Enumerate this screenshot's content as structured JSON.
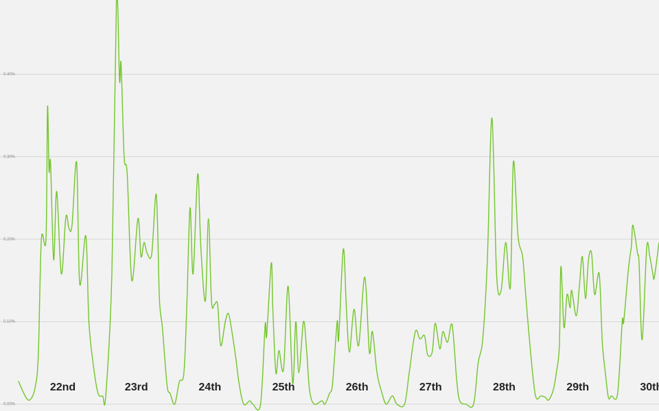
{
  "chart_data": {
    "type": "line",
    "color": "#72c52a",
    "grid": true,
    "day_labels": [
      "22nd",
      "23rd",
      "24th",
      "25th",
      "26th",
      "27th",
      "28th",
      "29th",
      "30th"
    ],
    "xlim": [
      -8.5,
      206.5
    ],
    "ylim": [
      0,
      0.49
    ],
    "yticks": [
      {
        "value": 0,
        "label": "0.00%"
      },
      {
        "value": 0.1,
        "label": "0.10%"
      },
      {
        "value": 0.2,
        "label": "0.20%"
      },
      {
        "value": 0.3,
        "label": "0.30%"
      },
      {
        "value": 0.4,
        "label": "0.40%"
      }
    ],
    "x": [
      -2.5,
      0,
      1.5,
      3,
      4,
      5,
      6.5,
      7,
      7.5,
      8,
      9,
      10,
      11.5,
      13,
      14,
      15,
      16.5,
      17.5,
      19.5,
      20.5,
      22,
      23.5,
      25,
      26,
      28,
      29.5,
      30.5,
      31,
      32,
      33,
      34.5,
      36.5,
      37.5,
      38.5,
      39.5,
      41,
      42.5,
      43.5,
      44.5,
      46,
      47,
      48.5,
      50,
      51.5,
      52.5,
      53.5,
      54.5,
      56,
      57,
      58.5,
      59.5,
      60.5,
      61.5,
      62.5,
      63.5,
      65,
      66,
      67,
      68.5,
      69.5,
      71,
      73,
      74,
      76.5,
      78,
      78.5,
      80,
      80.5,
      81.5,
      82.5,
      84,
      85.5,
      87,
      88,
      89,
      90.5,
      91.5,
      92.5,
      94,
      96.5,
      97.5,
      99,
      100,
      101.5,
      102,
      103.5,
      104.5,
      105.5,
      107,
      108.5,
      110.5,
      112,
      113,
      114.5,
      116,
      117.5,
      119.5,
      121,
      123.5,
      125,
      127,
      128.5,
      130,
      131,
      132.5,
      133.5,
      135,
      136,
      137.5,
      139,
      140.5,
      141.5,
      143.5,
      146,
      147.5,
      149,
      150.5,
      152,
      153.5,
      155,
      156.5,
      158,
      159,
      160.5,
      162,
      163,
      164,
      165.5,
      166.5,
      168,
      169.5,
      170.5,
      172,
      173,
      174,
      174.5,
      175.5,
      176.5,
      177.5,
      178,
      179.5,
      180.5,
      181.5,
      182.5,
      183.5,
      184.5,
      185.5,
      187,
      188,
      189,
      190,
      191,
      193,
      194.5,
      195,
      196.5,
      197.5,
      198,
      199.5,
      200,
      201,
      202.5,
      203.5,
      204.5,
      205,
      206.5
    ],
    "values": [
      0.028,
      0.008,
      0.006,
      0.021,
      0.06,
      0.2,
      0.2,
      0.36,
      0.283,
      0.292,
      0.175,
      0.258,
      0.158,
      0.227,
      0.213,
      0.217,
      0.293,
      0.146,
      0.204,
      0.1,
      0.046,
      0.013,
      0.01,
      0.01,
      0.158,
      0.492,
      0.392,
      0.413,
      0.3,
      0.279,
      0.15,
      0.225,
      0.179,
      0.196,
      0.183,
      0.182,
      0.254,
      0.129,
      0.092,
      0.023,
      0.013,
      0,
      0.027,
      0.038,
      0.125,
      0.238,
      0.158,
      0.279,
      0.192,
      0.125,
      0.225,
      0.125,
      0.121,
      0.121,
      0.071,
      0.1,
      0.11,
      0.092,
      0.054,
      0.025,
      0,
      0.004,
      0,
      0,
      0.096,
      0.083,
      0.171,
      0.117,
      0.038,
      0.065,
      0.042,
      0.143,
      0.025,
      0.1,
      0.038,
      0.1,
      0.067,
      0.017,
      0,
      0.004,
      0,
      0.013,
      0.025,
      0.1,
      0.079,
      0.188,
      0.117,
      0.063,
      0.115,
      0.071,
      0.154,
      0.063,
      0.088,
      0.038,
      0.015,
      0,
      0.01,
      0,
      0,
      0.038,
      0.088,
      0.079,
      0.083,
      0.06,
      0.063,
      0.098,
      0.067,
      0.088,
      0.075,
      0.096,
      0.029,
      0.004,
      0,
      0,
      0.05,
      0.079,
      0.175,
      0.347,
      0.158,
      0.138,
      0.196,
      0.142,
      0.294,
      0.204,
      0.179,
      0.133,
      0.088,
      0.029,
      0.007,
      0.01,
      0.008,
      0.005,
      0.017,
      0.038,
      0.071,
      0.167,
      0.093,
      0.133,
      0.117,
      0.138,
      0.107,
      0.142,
      0.179,
      0.128,
      0.175,
      0.183,
      0.133,
      0.158,
      0.075,
      0.038,
      0.008,
      0.01,
      0.013,
      0.1,
      0.1,
      0.163,
      0.192,
      0.217,
      0.183,
      0.171,
      0.078,
      0.19,
      0.179,
      0.158,
      0.154,
      0.196
    ]
  }
}
